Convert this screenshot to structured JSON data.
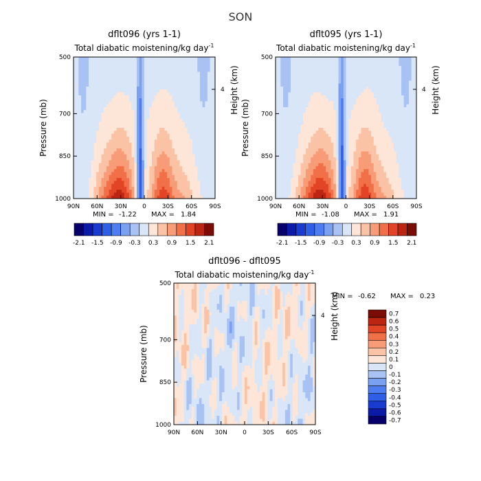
{
  "figure": {
    "season": "SON"
  },
  "axis_labels": {
    "x_ticks": [
      "90N",
      "60N",
      "30N",
      "0",
      "30S",
      "60S",
      "90S"
    ],
    "p_ticks": [
      {
        "label": "500",
        "p": 500
      },
      {
        "label": "700",
        "p": 700
      },
      {
        "label": "850",
        "p": 850
      },
      {
        "label": "1000",
        "p": 1000
      }
    ],
    "pressure_label": "Pressure (mb)",
    "height_label": "Height (km)",
    "height_tick": "4"
  },
  "chart_data": [
    {
      "type": "heatmap",
      "title": "dflt096 (yrs 1-1)",
      "subtitle": "Total diabatic moistening/kg day",
      "subtitle_sup": "-1",
      "xlabel": "",
      "ylabel": "Pressure (mb)",
      "y2label": "Height (km)",
      "x_range": [
        "90N",
        "90S"
      ],
      "ylim": [
        1000,
        500
      ],
      "stats": {
        "min_label": "MIN =",
        "min": "-1.22",
        "max_label": "MAX =",
        "max": "1.84"
      },
      "colorbar": {
        "orientation": "horizontal",
        "levels": [
          -2.1,
          -1.8,
          -1.5,
          -1.2,
          -0.9,
          -0.6,
          -0.3,
          0,
          0.3,
          0.6,
          0.9,
          1.2,
          1.5,
          1.8,
          2.1
        ],
        "labeled_levels": [
          "-2.1",
          "-1.5",
          "-0.9",
          "-0.3",
          "0.3",
          "0.9",
          "1.5",
          "2.1"
        ],
        "colors": [
          "#08006a",
          "#0c1aa8",
          "#1a3bd0",
          "#2f5fe6",
          "#4d7df0",
          "#7aa0f2",
          "#a8c2f3",
          "#d8e6f8",
          "#fde6d8",
          "#fbc3a6",
          "#f89c78",
          "#f17048",
          "#e24526",
          "#bb2512",
          "#7a0b05"
        ]
      }
    },
    {
      "type": "heatmap",
      "title": "dflt095 (yrs 1-1)",
      "subtitle": "Total diabatic moistening/kg day",
      "subtitle_sup": "-1",
      "xlabel": "",
      "ylabel": "Pressure (mb)",
      "y2label": "Height (km)",
      "x_range": [
        "90N",
        "90S"
      ],
      "ylim": [
        1000,
        500
      ],
      "stats": {
        "min_label": "MIN =",
        "min": "-1.08",
        "max_label": "MAX =",
        "max": "1.91"
      },
      "colorbar": {
        "orientation": "horizontal",
        "levels": [
          -2.1,
          -1.8,
          -1.5,
          -1.2,
          -0.9,
          -0.6,
          -0.3,
          0,
          0.3,
          0.6,
          0.9,
          1.2,
          1.5,
          1.8,
          2.1
        ],
        "labeled_levels": [
          "-2.1",
          "-1.5",
          "-0.9",
          "-0.3",
          "0.3",
          "0.9",
          "1.5",
          "2.1"
        ],
        "colors": [
          "#08006a",
          "#0c1aa8",
          "#1a3bd0",
          "#2f5fe6",
          "#4d7df0",
          "#7aa0f2",
          "#a8c2f3",
          "#d8e6f8",
          "#fde6d8",
          "#fbc3a6",
          "#f89c78",
          "#f17048",
          "#e24526",
          "#bb2512",
          "#7a0b05"
        ]
      }
    },
    {
      "type": "heatmap",
      "title": "dflt096 - dflt095",
      "subtitle": "Total diabatic moistening/kg day",
      "subtitle_sup": "-1",
      "xlabel": "",
      "ylabel": "Pressure (mb)",
      "y2label": "Height (km)",
      "x_range": [
        "90N",
        "90S"
      ],
      "ylim": [
        1000,
        500
      ],
      "stats": {
        "min_label": "MIN =",
        "min": "-0.62",
        "max_label": "MAX =",
        "max": "0.23"
      },
      "colorbar": {
        "orientation": "vertical",
        "levels": [
          0.7,
          0.6,
          0.5,
          0.4,
          0.3,
          0.2,
          0.1,
          0,
          -0.1,
          -0.2,
          -0.3,
          -0.4,
          -0.5,
          -0.6,
          -0.7
        ],
        "labeled_levels": [
          "0.7",
          "0.6",
          "0.5",
          "0.4",
          "0.3",
          "0.2",
          "0.1",
          "0",
          "-0.1",
          "-0.2",
          "-0.3",
          "-0.4",
          "-0.5",
          "-0.6",
          "-0.7"
        ],
        "colors": [
          "#7a0b05",
          "#bb2512",
          "#e24526",
          "#f17048",
          "#f89c78",
          "#fbc3a6",
          "#fde6d8",
          "#d8e6f8",
          "#a8c2f3",
          "#7aa0f2",
          "#4d7df0",
          "#2f5fe6",
          "#1a3bd0",
          "#0c1aa8",
          "#08006a"
        ]
      }
    }
  ]
}
